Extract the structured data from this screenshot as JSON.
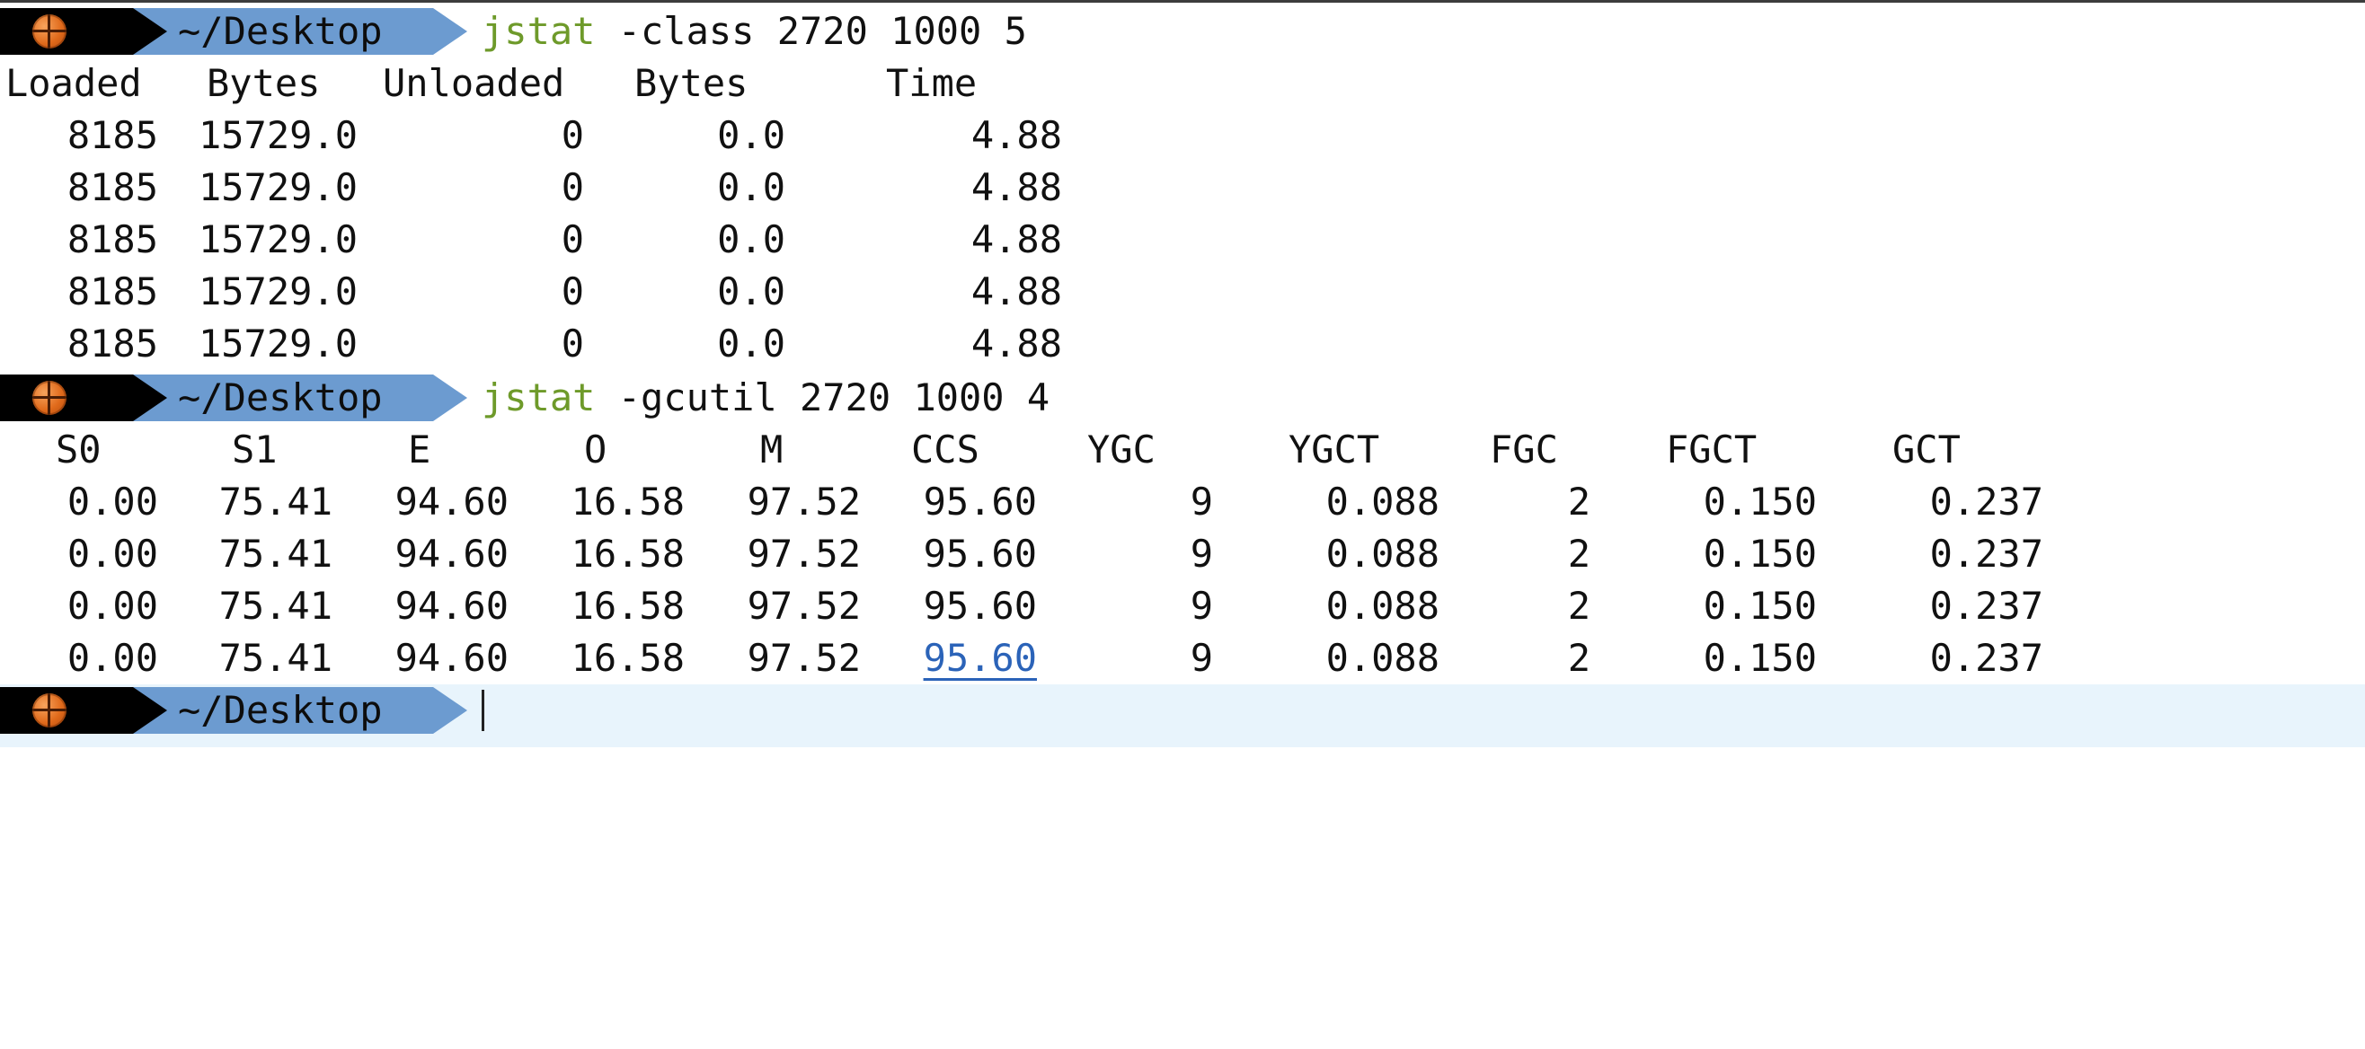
{
  "prompt": {
    "dir": "~/Desktop",
    "icon": "basketball-icon",
    "colors": {
      "icon_bg": "#000000",
      "dir_bg": "#6c9bd0",
      "command": "#6e9a2a",
      "link": "#2b63b8",
      "active_line": "#e8f4fc"
    }
  },
  "commands": [
    {
      "exe": "jstat",
      "args": " -class 2720 1000 5"
    },
    {
      "exe": "jstat",
      "args": " -gcutil 2720 1000 4"
    }
  ],
  "class_table": {
    "headers": [
      "Loaded",
      "Bytes",
      "Unloaded",
      "Bytes",
      "Time"
    ],
    "rows": [
      [
        "8185",
        "15729.0",
        "0",
        "0.0",
        "4.88"
      ],
      [
        "8185",
        "15729.0",
        "0",
        "0.0",
        "4.88"
      ],
      [
        "8185",
        "15729.0",
        "0",
        "0.0",
        "4.88"
      ],
      [
        "8185",
        "15729.0",
        "0",
        "0.0",
        "4.88"
      ],
      [
        "8185",
        "15729.0",
        "0",
        "0.0",
        "4.88"
      ]
    ]
  },
  "gcutil_table": {
    "headers": [
      "S0",
      "S1",
      "E",
      "O",
      "M",
      "CCS",
      "YGC",
      "YGCT",
      "FGC",
      "FGCT",
      "GCT"
    ],
    "rows": [
      [
        "0.00",
        "75.41",
        "94.60",
        "16.58",
        "97.52",
        "95.60",
        "9",
        "0.088",
        "2",
        "0.150",
        "0.237"
      ],
      [
        "0.00",
        "75.41",
        "94.60",
        "16.58",
        "97.52",
        "95.60",
        "9",
        "0.088",
        "2",
        "0.150",
        "0.237"
      ],
      [
        "0.00",
        "75.41",
        "94.60",
        "16.58",
        "97.52",
        "95.60",
        "9",
        "0.088",
        "2",
        "0.150",
        "0.237"
      ],
      [
        "0.00",
        "75.41",
        "94.60",
        "16.58",
        "97.52",
        "95.60",
        "9",
        "0.088",
        "2",
        "0.150",
        "0.237"
      ]
    ]
  }
}
